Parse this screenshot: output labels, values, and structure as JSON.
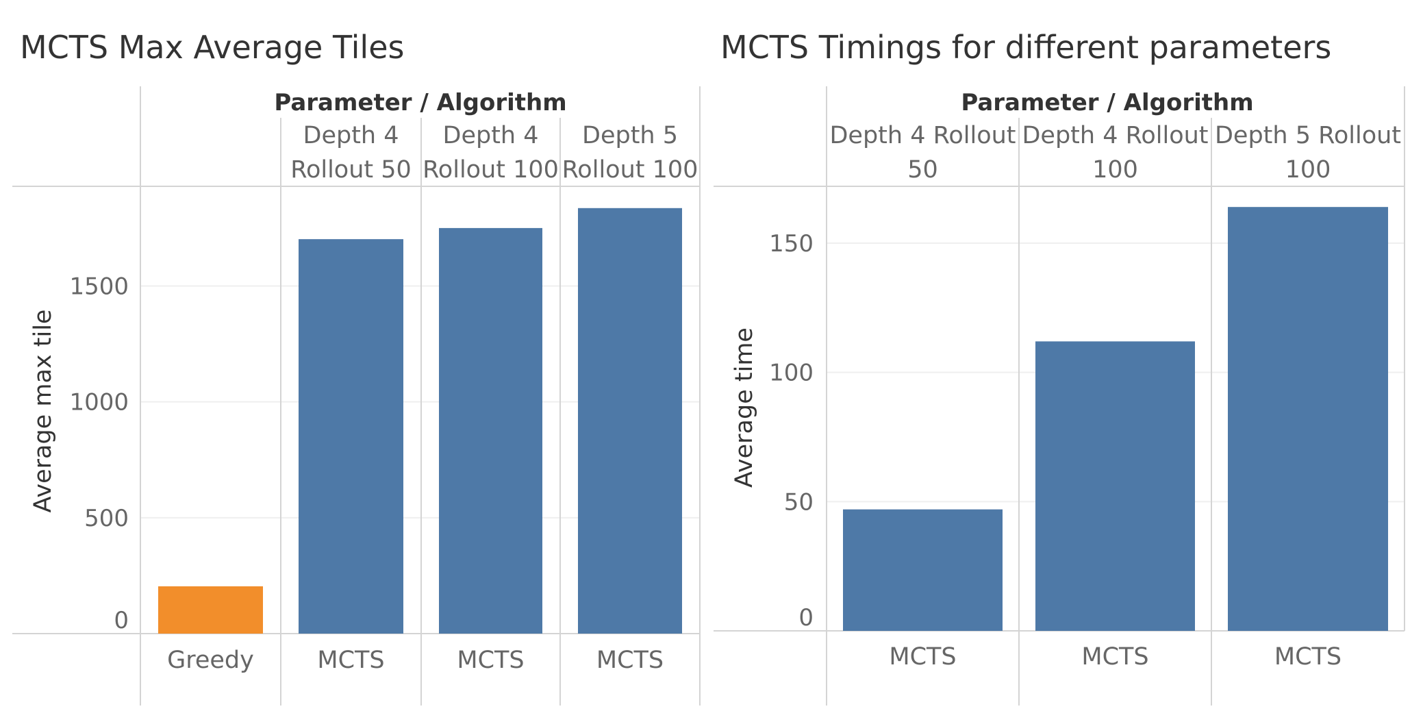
{
  "charts": [
    {
      "title": "MCTS Max Average Tiles",
      "header": "Parameter / Algorithm",
      "ylabel": "Average max tile",
      "columns": [
        {
          "param": [
            "",
            ""
          ],
          "algorithm": "Greedy"
        },
        {
          "param": [
            "Depth 4",
            "Rollout 50"
          ],
          "algorithm": "MCTS"
        },
        {
          "param": [
            "Depth 4",
            "Rollout 100"
          ],
          "algorithm": "MCTS"
        },
        {
          "param": [
            "Depth 5",
            "Rollout 100"
          ],
          "algorithm": "MCTS"
        }
      ]
    },
    {
      "title": "MCTS Timings for different parameters",
      "header": "Parameter / Algorithm",
      "ylabel": "Average time",
      "columns": [
        {
          "param": [
            "Depth 4 Rollout",
            "50"
          ],
          "algorithm": "MCTS"
        },
        {
          "param": [
            "Depth 4 Rollout",
            "100"
          ],
          "algorithm": "MCTS"
        },
        {
          "param": [
            "Depth 5 Rollout",
            "100"
          ],
          "algorithm": "MCTS"
        }
      ]
    }
  ],
  "chart_data": [
    {
      "type": "bar",
      "title": "MCTS Max Average Tiles",
      "xlabel": "Parameter / Algorithm",
      "ylabel": "Average max tile",
      "categories": [
        "Greedy",
        "Depth 4 Rollout 50 MCTS",
        "Depth 4 Rollout 100 MCTS",
        "Depth 5 Rollout 100 MCTS"
      ],
      "values": [
        204,
        1702,
        1750,
        1836
      ],
      "colors": [
        "#F28E2B",
        "#4E79A7",
        "#4E79A7",
        "#4E79A7"
      ],
      "yticks": [
        0,
        500,
        1000,
        1500
      ],
      "ylim": [
        0,
        1930
      ],
      "grid": true
    },
    {
      "type": "bar",
      "title": "MCTS Timings for different parameters",
      "xlabel": "Parameter / Algorithm",
      "ylabel": "Average time",
      "categories": [
        "Depth 4 Rollout 50 MCTS",
        "Depth 4 Rollout 100 MCTS",
        "Depth 5 Rollout 100 MCTS"
      ],
      "values": [
        47,
        112,
        164
      ],
      "colors": [
        "#4E79A7",
        "#4E79A7",
        "#4E79A7"
      ],
      "yticks": [
        0,
        50,
        100,
        150
      ],
      "ylim": [
        0,
        172
      ],
      "grid": true
    }
  ]
}
